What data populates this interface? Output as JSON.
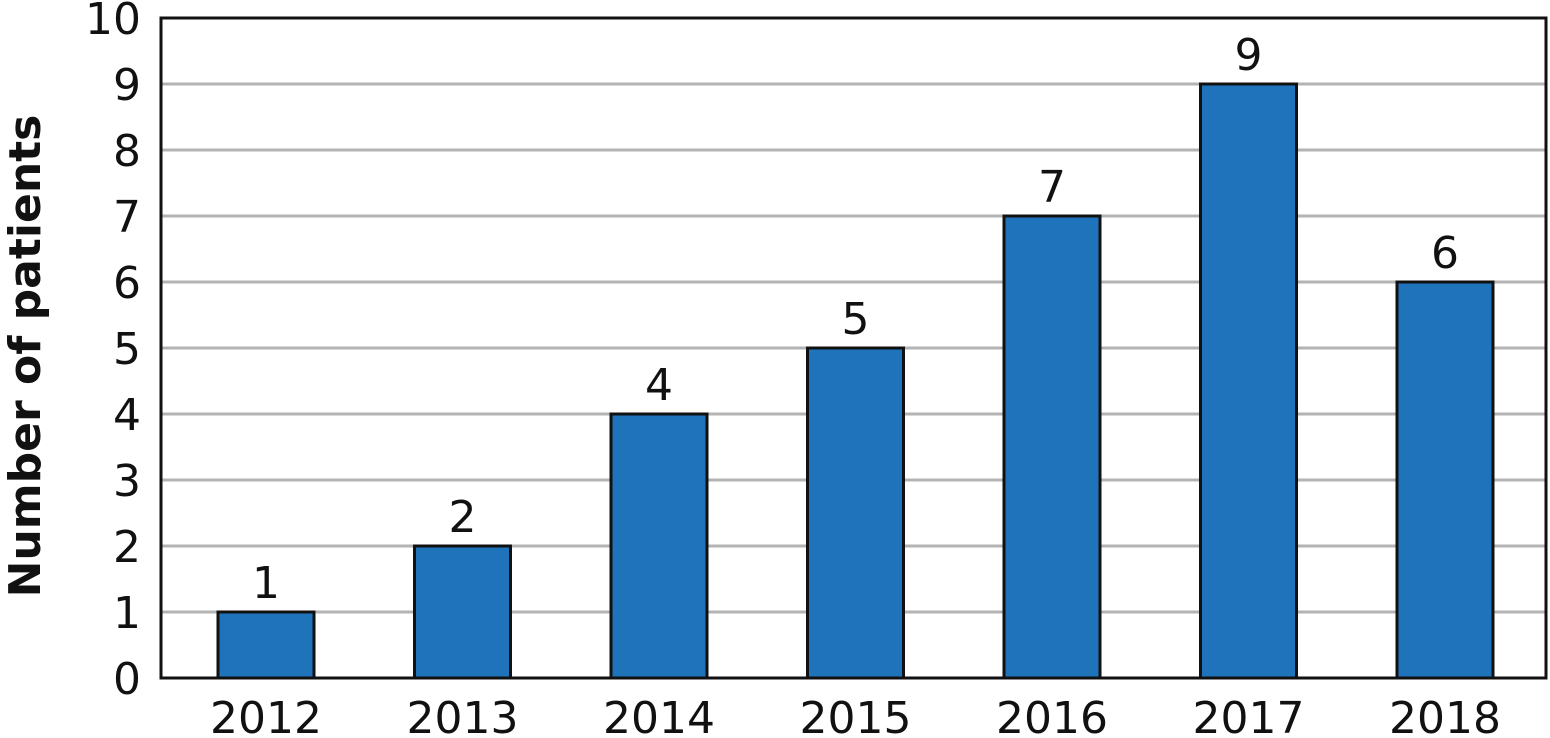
{
  "chart_data": {
    "type": "bar",
    "title": "",
    "xlabel": "",
    "ylabel": "Number of patients",
    "categories": [
      "2012",
      "2013",
      "2014",
      "2015",
      "2016",
      "2017",
      "2018"
    ],
    "values": [
      1,
      2,
      4,
      5,
      7,
      9,
      6
    ],
    "ylim": [
      0,
      10
    ],
    "yticks": [
      0,
      1,
      2,
      3,
      4,
      5,
      6,
      7,
      8,
      9,
      10
    ],
    "grid": true,
    "legend": "none",
    "data_labels": true,
    "bar_color": "#1f73ba",
    "grid_color": "#b3b3b3"
  }
}
